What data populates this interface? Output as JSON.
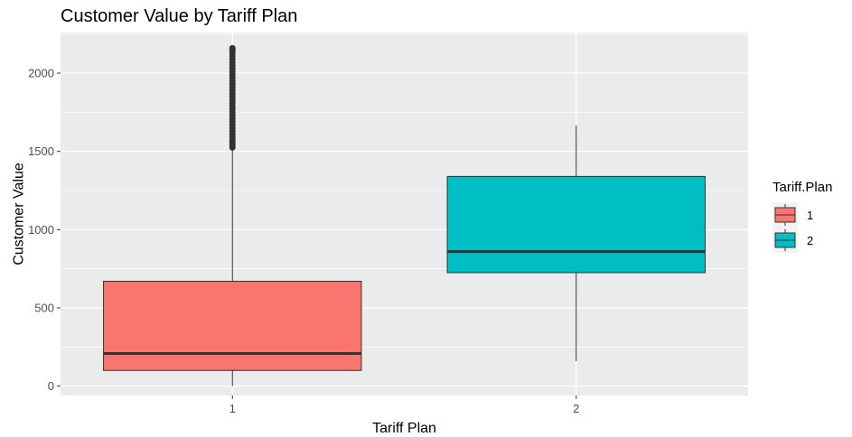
{
  "chart_data": {
    "type": "boxplot",
    "title": "Customer Value by Tariff Plan",
    "xlabel": "Tariff Plan",
    "ylabel": "Customer Value",
    "ylim": [
      -60,
      2260
    ],
    "yticks": [
      0,
      500,
      1000,
      1500,
      2000
    ],
    "grid": true,
    "legend": {
      "title": "Tariff.Plan",
      "position": "right"
    },
    "categories": [
      "1",
      "2"
    ],
    "boxes": [
      {
        "category": "1",
        "color": "#F8766D",
        "whisker_low": 0,
        "q1": 100,
        "median": 208,
        "q3": 670,
        "whisker_high": 1520,
        "outliers": [
          1525,
          1540,
          1555,
          1570,
          1590,
          1610,
          1630,
          1650,
          1670,
          1690,
          1710,
          1730,
          1750,
          1770,
          1790,
          1810,
          1830,
          1850,
          1870,
          1890,
          1910,
          1930,
          1950,
          1970,
          1990,
          2010,
          2030,
          2050,
          2070,
          2090,
          2110,
          2130,
          2150,
          2160
        ]
      },
      {
        "category": "2",
        "color": "#00BFC4",
        "whisker_low": 160,
        "q1": 725,
        "median": 860,
        "q3": 1340,
        "whisker_high": 1665,
        "outliers": []
      }
    ]
  }
}
